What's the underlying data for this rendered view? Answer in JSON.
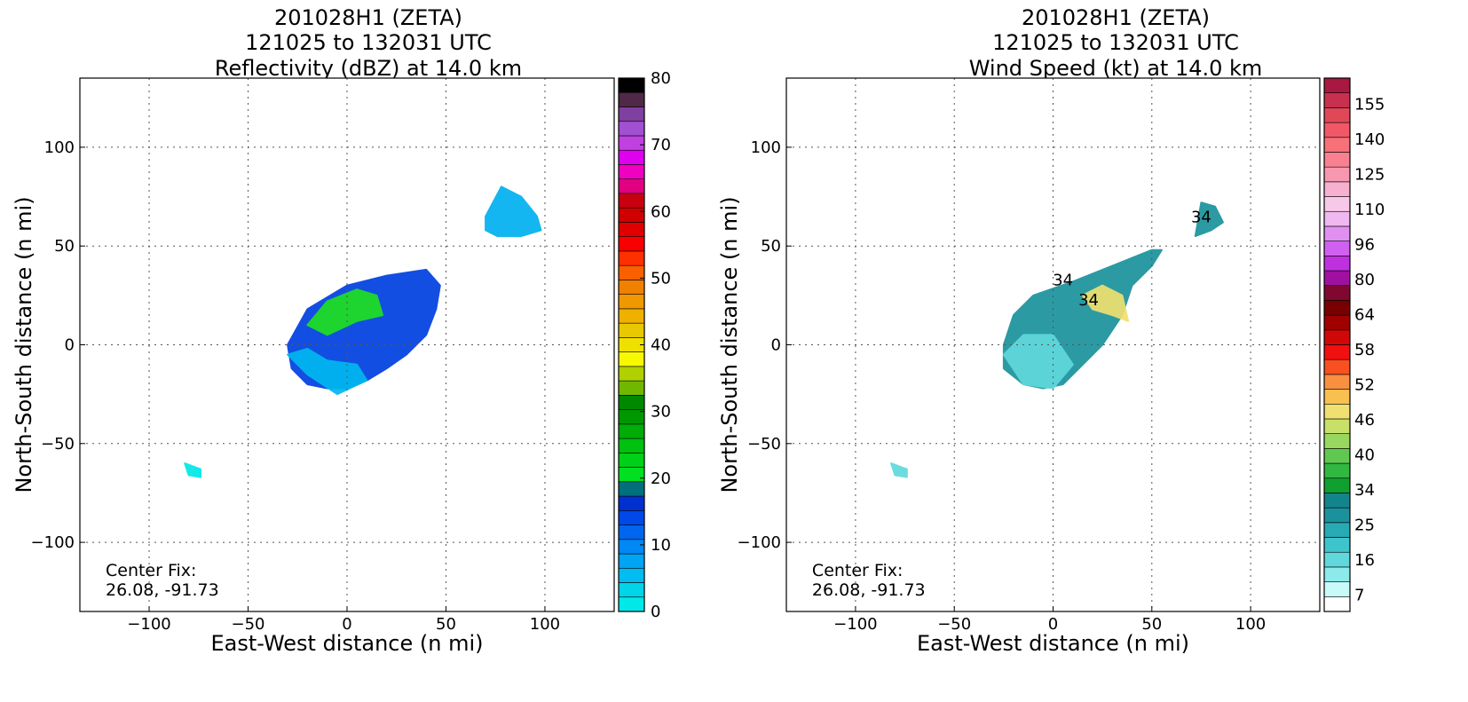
{
  "chart_data": [
    {
      "type": "heatmap",
      "title": [
        "201028H1 (ZETA)",
        "121025 to 132031 UTC",
        "Reflectivity (dBZ) at 14.0 km"
      ],
      "xlabel": "East-West distance (n mi)",
      "ylabel": "North-South distance (n mi)",
      "xlim": [
        -135,
        135
      ],
      "ylim": [
        -135,
        135
      ],
      "xticks": [
        -100,
        -50,
        0,
        50,
        100
      ],
      "yticks": [
        -100,
        -50,
        0,
        50,
        100
      ],
      "grid": true,
      "annotation": [
        "Center Fix:",
        "26.08, -91.73"
      ],
      "colorbar": {
        "min": 0,
        "max": 80,
        "step": 2.5,
        "ticks": [
          0,
          10,
          20,
          30,
          40,
          50,
          60,
          70,
          80
        ],
        "colors": [
          "#00e8e8",
          "#00d4e8",
          "#00bcf0",
          "#00a4f4",
          "#0088f4",
          "#0066f0",
          "#0048e8",
          "#0030d0",
          "#00707c",
          "#00e020",
          "#00d018",
          "#00c010",
          "#00ac08",
          "#009800",
          "#008800",
          "#70b800",
          "#b0d000",
          "#f8f800",
          "#f0e000",
          "#e8c800",
          "#f0b000",
          "#f09800",
          "#f08000",
          "#f86000",
          "#ff3000",
          "#f80000",
          "#e00000",
          "#d00000",
          "#c80010",
          "#e00080",
          "#f000c0",
          "#e000f0",
          "#c040e0",
          "#a050d0",
          "#8040a0",
          "#502848",
          "#000000"
        ]
      },
      "regions": [
        {
          "name": "reflectivity-cluster-main",
          "color": "#0040e0",
          "points": [
            [
              -30,
              0
            ],
            [
              -20,
              18
            ],
            [
              0,
              30
            ],
            [
              20,
              35
            ],
            [
              40,
              38
            ],
            [
              47,
              30
            ],
            [
              45,
              18
            ],
            [
              40,
              5
            ],
            [
              30,
              -5
            ],
            [
              20,
              -12
            ],
            [
              10,
              -18
            ],
            [
              0,
              -22
            ],
            [
              -10,
              -22
            ],
            [
              -20,
              -20
            ],
            [
              -28,
              -12
            ]
          ]
        },
        {
          "name": "reflectivity-cluster-cyan",
          "color": "#00b8f0",
          "points": [
            [
              -30,
              -5
            ],
            [
              -20,
              -15
            ],
            [
              -5,
              -25
            ],
            [
              10,
              -18
            ],
            [
              5,
              -10
            ],
            [
              -10,
              -8
            ],
            [
              -20,
              -2
            ]
          ]
        },
        {
          "name": "reflectivity-cluster-green",
          "color": "#20e020",
          "points": [
            [
              -20,
              10
            ],
            [
              -10,
              22
            ],
            [
              5,
              28
            ],
            [
              15,
              25
            ],
            [
              18,
              15
            ],
            [
              5,
              12
            ],
            [
              -10,
              5
            ]
          ]
        },
        {
          "name": "reflectivity-cluster-north",
          "color": "#00b0f0",
          "points": [
            [
              70,
              65
            ],
            [
              78,
              80
            ],
            [
              88,
              75
            ],
            [
              96,
              65
            ],
            [
              98,
              58
            ],
            [
              88,
              55
            ],
            [
              76,
              55
            ],
            [
              70,
              58
            ]
          ]
        },
        {
          "name": "reflectivity-speck-sw",
          "color": "#00e8e8",
          "points": [
            [
              -82,
              -60
            ],
            [
              -74,
              -63
            ],
            [
              -74,
              -67
            ],
            [
              -80,
              -66
            ]
          ]
        }
      ]
    },
    {
      "type": "heatmap",
      "title": [
        "201028H1 (ZETA)",
        "121025 to 132031 UTC",
        "Wind Speed (kt) at 14.0 km"
      ],
      "xlabel": "East-West distance (n mi)",
      "ylabel": "North-South distance (n mi)",
      "xlim": [
        -135,
        135
      ],
      "ylim": [
        -135,
        135
      ],
      "xticks": [
        -100,
        -50,
        0,
        50,
        100
      ],
      "yticks": [
        -100,
        -50,
        0,
        50,
        100
      ],
      "grid": true,
      "annotation": [
        "Center Fix:",
        "26.08, -91.73"
      ],
      "contour_labels": [
        "34",
        "34",
        "34"
      ],
      "colorbar": {
        "ticks": [
          "7",
          "16",
          "25",
          "34",
          "40",
          "46",
          "52",
          "58",
          "64",
          "80",
          "96",
          "110",
          "125",
          "140",
          "155"
        ],
        "colors": [
          "#ffffff",
          "#c8fafa",
          "#8ceaea",
          "#60d8dc",
          "#3ec4cc",
          "#28aab4",
          "#1a929c",
          "#14848c",
          "#10a030",
          "#30b840",
          "#60c850",
          "#98d860",
          "#c8e068",
          "#f0e070",
          "#f8c050",
          "#f89040",
          "#f85020",
          "#f01010",
          "#d00808",
          "#a00000",
          "#780000",
          "#800830",
          "#a010a0",
          "#c030e0",
          "#d060f0",
          "#e090f0",
          "#f0b8f0",
          "#f8c8e8",
          "#f8b0d0",
          "#f898b0",
          "#f88090",
          "#f87078",
          "#f05868",
          "#e04858",
          "#c83050",
          "#a81840"
        ]
      },
      "regions": [
        {
          "name": "wind-cluster-main",
          "color": "#1a929c",
          "points": [
            [
              -25,
              0
            ],
            [
              -20,
              15
            ],
            [
              -10,
              25
            ],
            [
              10,
              32
            ],
            [
              30,
              40
            ],
            [
              50,
              48
            ],
            [
              55,
              48
            ],
            [
              50,
              40
            ],
            [
              40,
              30
            ],
            [
              35,
              15
            ],
            [
              25,
              0
            ],
            [
              15,
              -10
            ],
            [
              5,
              -20
            ],
            [
              -5,
              -22
            ],
            [
              -15,
              -20
            ],
            [
              -25,
              -12
            ]
          ]
        },
        {
          "name": "wind-cluster-light",
          "color": "#60d8dc",
          "points": [
            [
              -25,
              -5
            ],
            [
              -15,
              5
            ],
            [
              0,
              5
            ],
            [
              10,
              -10
            ],
            [
              0,
              -22
            ],
            [
              -15,
              -20
            ]
          ]
        },
        {
          "name": "wind-cluster-maxima",
          "color": "#f0e070",
          "points": [
            [
              15,
              25
            ],
            [
              25,
              30
            ],
            [
              35,
              25
            ],
            [
              38,
              12
            ],
            [
              30,
              15
            ],
            [
              20,
              18
            ]
          ]
        },
        {
          "name": "wind-cluster-north",
          "color": "#1a929c",
          "points": [
            [
              72,
              55
            ],
            [
              75,
              72
            ],
            [
              82,
              70
            ],
            [
              86,
              62
            ],
            [
              80,
              58
            ]
          ]
        },
        {
          "name": "wind-speck-sw",
          "color": "#60d8dc",
          "points": [
            [
              -82,
              -60
            ],
            [
              -74,
              -63
            ],
            [
              -74,
              -67
            ],
            [
              -80,
              -66
            ]
          ]
        }
      ]
    }
  ]
}
